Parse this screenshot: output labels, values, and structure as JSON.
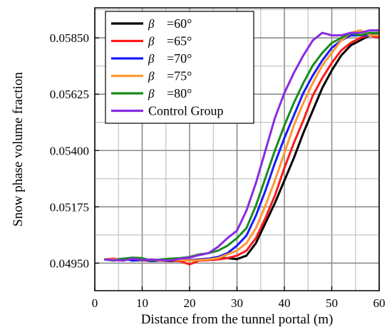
{
  "chart_data": {
    "type": "line",
    "xlabel": "Distance from the tunnel portal (m)",
    "ylabel": "Snow phase volume fraction",
    "xlim": [
      0,
      60
    ],
    "ylim": [
      0.0484,
      0.0597
    ],
    "xticks": [
      0,
      10,
      20,
      30,
      40,
      50,
      60
    ],
    "xtick_labels": [
      "0",
      "10",
      "20",
      "30",
      "40",
      "50",
      "60"
    ],
    "yticks": [
      0.0495,
      0.05175,
      0.054,
      0.05625,
      0.0585
    ],
    "ytick_labels": [
      "0.04950",
      "0.05175",
      "0.05400",
      "0.05625",
      "0.05850"
    ],
    "grid": true,
    "legend_position": "top-left",
    "series": [
      {
        "name": "=60°",
        "beta": "β",
        "color": "#000000",
        "x": [
          2,
          4,
          6,
          8,
          10,
          12,
          14,
          16,
          18,
          20,
          22,
          24,
          26,
          28,
          30,
          32,
          34,
          36,
          38,
          40,
          42,
          44,
          46,
          48,
          50,
          52,
          54,
          56,
          58,
          60
        ],
        "y": [
          0.04965,
          0.04962,
          0.04968,
          0.0496,
          0.04962,
          0.04958,
          0.0496,
          0.04958,
          0.0496,
          0.04962,
          0.04965,
          0.04968,
          0.0497,
          0.0497,
          0.04966,
          0.0498,
          0.0503,
          0.0511,
          0.0519,
          0.0528,
          0.0537,
          0.0547,
          0.0556,
          0.0565,
          0.0572,
          0.0578,
          0.0582,
          0.0584,
          0.0586,
          0.0586
        ]
      },
      {
        "name": "=65°",
        "beta": "β",
        "color": "#ff1a1a",
        "x": [
          2,
          4,
          6,
          8,
          10,
          12,
          14,
          16,
          18,
          20,
          22,
          24,
          26,
          28,
          30,
          32,
          34,
          36,
          38,
          40,
          42,
          44,
          46,
          48,
          50,
          52,
          54,
          56,
          58,
          60
        ],
        "y": [
          0.04965,
          0.04968,
          0.0496,
          0.0497,
          0.04962,
          0.04958,
          0.0496,
          0.0496,
          0.04958,
          0.04945,
          0.0496,
          0.04962,
          0.04965,
          0.0497,
          0.0498,
          0.05,
          0.0505,
          0.0513,
          0.0522,
          0.0533,
          0.0543,
          0.0552,
          0.0562,
          0.0569,
          0.0575,
          0.058,
          0.0583,
          0.0585,
          0.0586,
          0.0585
        ]
      },
      {
        "name": "=70°",
        "beta": "β",
        "color": "#1a1aff",
        "x": [
          2,
          4,
          6,
          8,
          10,
          12,
          14,
          16,
          18,
          20,
          22,
          24,
          26,
          28,
          30,
          32,
          34,
          36,
          38,
          40,
          42,
          44,
          46,
          48,
          50,
          52,
          54,
          56,
          58,
          60
        ],
        "y": [
          0.04965,
          0.04962,
          0.04968,
          0.0496,
          0.04965,
          0.04958,
          0.0496,
          0.04962,
          0.04965,
          0.0496,
          0.04965,
          0.04968,
          0.04975,
          0.0499,
          0.0502,
          0.0506,
          0.0514,
          0.0524,
          0.0535,
          0.0545,
          0.0554,
          0.0563,
          0.057,
          0.0576,
          0.0581,
          0.0584,
          0.0586,
          0.0586,
          0.0586,
          0.0587
        ]
      },
      {
        "name": "=75°",
        "beta": "β",
        "color": "#ff9933",
        "x": [
          2,
          4,
          6,
          8,
          10,
          12,
          14,
          16,
          18,
          20,
          22,
          24,
          26,
          28,
          30,
          32,
          34,
          36,
          38,
          40,
          42,
          44,
          46,
          48,
          50,
          52,
          54,
          56,
          58,
          60
        ],
        "y": [
          0.04965,
          0.04965,
          0.04962,
          0.0497,
          0.04965,
          0.04962,
          0.0496,
          0.04965,
          0.04962,
          0.0496,
          0.04962,
          0.04965,
          0.0497,
          0.04985,
          0.05,
          0.0503,
          0.0509,
          0.0518,
          0.0528,
          0.0539,
          0.055,
          0.0559,
          0.0567,
          0.0574,
          0.0579,
          0.0584,
          0.0587,
          0.0588,
          0.0586,
          0.0586
        ]
      },
      {
        "name": "=80°",
        "beta": "β",
        "color": "#1a8c1a",
        "x": [
          2,
          4,
          6,
          8,
          10,
          12,
          14,
          16,
          18,
          20,
          22,
          24,
          26,
          28,
          30,
          32,
          34,
          36,
          38,
          40,
          42,
          44,
          46,
          48,
          50,
          52,
          54,
          56,
          58,
          60
        ],
        "y": [
          0.04965,
          0.0496,
          0.04968,
          0.04972,
          0.0497,
          0.0496,
          0.04965,
          0.04968,
          0.0497,
          0.04975,
          0.04985,
          0.0499,
          0.05,
          0.0502,
          0.0505,
          0.0509,
          0.0518,
          0.0529,
          0.054,
          0.055,
          0.0559,
          0.0567,
          0.0574,
          0.0579,
          0.0583,
          0.0585,
          0.0587,
          0.0586,
          0.0587,
          0.0587
        ]
      },
      {
        "name": "Control Group",
        "beta": "",
        "color": "#8a2be2",
        "x": [
          2,
          4,
          6,
          8,
          10,
          12,
          14,
          16,
          18,
          20,
          22,
          24,
          26,
          28,
          30,
          32,
          34,
          36,
          38,
          40,
          42,
          44,
          46,
          48,
          50,
          52,
          54,
          56,
          58,
          60
        ],
        "y": [
          0.04965,
          0.04962,
          0.0496,
          0.04968,
          0.04962,
          0.04965,
          0.04962,
          0.0496,
          0.04968,
          0.04972,
          0.04982,
          0.0499,
          0.05015,
          0.0505,
          0.0508,
          0.0516,
          0.0527,
          0.054,
          0.0553,
          0.0563,
          0.0571,
          0.0578,
          0.0584,
          0.0587,
          0.0586,
          0.0586,
          0.0587,
          0.0587,
          0.0588,
          0.0588
        ]
      }
    ]
  }
}
